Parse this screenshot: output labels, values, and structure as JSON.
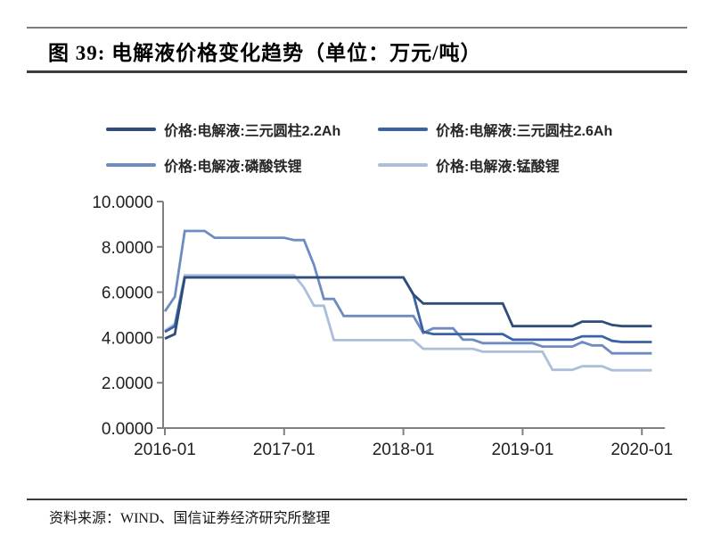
{
  "figure": {
    "title": "图 39: 电解液价格变化趋势（单位：万元/吨）",
    "source": "资料来源：WIND、国信证券经济研究所整理"
  },
  "legend": {
    "items": [
      {
        "label": "价格:电解液:三元圆柱2.2Ah",
        "color": "#2e4d7b"
      },
      {
        "label": "价格:电解液:三元圆柱2.6Ah",
        "color": "#3a62a5"
      },
      {
        "label": "价格:电解液:磷酸铁锂",
        "color": "#6e8cc0"
      },
      {
        "label": "价格:电解液:锰酸锂",
        "color": "#abbfda"
      }
    ]
  },
  "colors": {
    "axis": "#808080",
    "tick_text": "#1f1f1f"
  },
  "chart_data": {
    "type": "line",
    "title": "电解液价格变化趋势",
    "unit": "万元/吨",
    "ylim": [
      0,
      10
    ],
    "grid": false,
    "legend_position": "top",
    "y_tick_labels": [
      "10.0000",
      "8.0000",
      "6.0000",
      "4.0000",
      "2.0000",
      "0.0000"
    ],
    "x_tick_labels": [
      "2016-01",
      "2017-01",
      "2018-01",
      "2019-01",
      "2020-01"
    ],
    "x": [
      "2016-01",
      "2016-02",
      "2016-03",
      "2016-04",
      "2016-05",
      "2016-06",
      "2016-07",
      "2016-08",
      "2016-09",
      "2016-10",
      "2016-11",
      "2016-12",
      "2017-01",
      "2017-02",
      "2017-03",
      "2017-04",
      "2017-05",
      "2017-06",
      "2017-07",
      "2017-08",
      "2017-09",
      "2017-10",
      "2017-11",
      "2017-12",
      "2018-01",
      "2018-02",
      "2018-03",
      "2018-04",
      "2018-05",
      "2018-06",
      "2018-07",
      "2018-08",
      "2018-09",
      "2018-10",
      "2018-11",
      "2018-12",
      "2019-01",
      "2019-02",
      "2019-03",
      "2019-04",
      "2019-05",
      "2019-06",
      "2019-07",
      "2019-08",
      "2019-09",
      "2019-10",
      "2019-11",
      "2019-12",
      "2020-01",
      "2020-02"
    ],
    "series": [
      {
        "id": "sanyuan-22ah",
        "name": "价格:电解液:三元圆柱2.2Ah",
        "color": "#2e4d7b",
        "values": [
          3.95,
          4.15,
          6.65,
          6.65,
          6.65,
          6.65,
          6.65,
          6.65,
          6.65,
          6.65,
          6.65,
          6.65,
          6.65,
          6.65,
          6.65,
          6.65,
          6.65,
          6.65,
          6.65,
          6.65,
          6.65,
          6.65,
          6.65,
          6.65,
          6.65,
          5.9,
          5.5,
          5.5,
          5.5,
          5.5,
          5.5,
          5.5,
          5.5,
          5.5,
          5.5,
          4.5,
          4.5,
          4.5,
          4.5,
          4.5,
          4.5,
          4.5,
          4.7,
          4.7,
          4.7,
          4.55,
          4.5,
          4.5,
          4.5,
          4.5
        ]
      },
      {
        "id": "sanyuan-26ah",
        "name": "价格:电解液:三元圆柱2.6Ah",
        "color": "#3a62a5",
        "values": [
          4.25,
          4.5,
          6.65,
          6.65,
          6.65,
          6.65,
          6.65,
          6.65,
          6.65,
          6.65,
          6.65,
          6.65,
          6.65,
          6.65,
          6.65,
          6.65,
          6.65,
          6.65,
          6.65,
          6.65,
          6.65,
          6.65,
          6.65,
          6.65,
          6.65,
          5.9,
          4.25,
          4.15,
          4.15,
          4.15,
          4.15,
          4.15,
          4.15,
          4.15,
          4.15,
          3.9,
          3.9,
          3.9,
          3.9,
          3.9,
          3.9,
          3.9,
          4.05,
          4.05,
          4.05,
          3.85,
          3.8,
          3.8,
          3.8,
          3.8
        ]
      },
      {
        "id": "linsuantieli",
        "name": "价格:电解液:磷酸铁锂",
        "color": "#6e8cc0",
        "values": [
          5.15,
          5.8,
          8.7,
          8.7,
          8.7,
          8.4,
          8.4,
          8.4,
          8.4,
          8.4,
          8.4,
          8.4,
          8.4,
          8.3,
          8.3,
          7.2,
          5.7,
          5.7,
          4.95,
          4.95,
          4.95,
          4.95,
          4.95,
          4.95,
          4.95,
          4.95,
          4.2,
          4.4,
          4.4,
          4.4,
          3.9,
          3.9,
          3.75,
          3.75,
          3.75,
          3.75,
          3.75,
          3.75,
          3.6,
          3.6,
          3.6,
          3.6,
          3.8,
          3.65,
          3.65,
          3.3,
          3.3,
          3.3,
          3.3,
          3.3
        ]
      },
      {
        "id": "mengsuanli",
        "name": "价格:电解液:锰酸锂",
        "color": "#abbfda",
        "values": [
          4.3,
          4.6,
          6.75,
          6.75,
          6.75,
          6.75,
          6.75,
          6.75,
          6.75,
          6.75,
          6.75,
          6.75,
          6.75,
          6.75,
          6.2,
          5.4,
          5.4,
          3.88,
          3.88,
          3.88,
          3.88,
          3.88,
          3.88,
          3.88,
          3.88,
          3.88,
          3.5,
          3.5,
          3.5,
          3.5,
          3.5,
          3.5,
          3.37,
          3.37,
          3.37,
          3.37,
          3.37,
          3.37,
          3.37,
          2.57,
          2.57,
          2.57,
          2.73,
          2.73,
          2.73,
          2.55,
          2.55,
          2.55,
          2.55,
          2.55
        ]
      }
    ]
  }
}
